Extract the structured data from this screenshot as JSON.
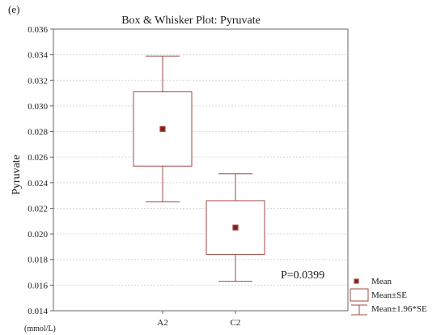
{
  "panel_label": "(e)",
  "chart_data": {
    "type": "box",
    "title": "Box & Whisker Plot: Pyruvate",
    "xlabel": "",
    "ylabel": "Pyruvate",
    "unit_label": "(mmol/L)",
    "categories": [
      "A2",
      "C2"
    ],
    "ylim": [
      0.014,
      0.036
    ],
    "yticks": [
      "0.014",
      "0.016",
      "0.018",
      "0.020",
      "0.022",
      "0.024",
      "0.026",
      "0.028",
      "0.030",
      "0.032",
      "0.034",
      "0.036"
    ],
    "grid": true,
    "boxes": [
      {
        "category": "A2",
        "mean": 0.0282,
        "se_low": 0.0253,
        "se_high": 0.0311,
        "ci_low": 0.0225,
        "ci_high": 0.0339
      },
      {
        "category": "C2",
        "mean": 0.0205,
        "se_low": 0.0184,
        "se_high": 0.0226,
        "ci_low": 0.0163,
        "ci_high": 0.0247
      }
    ],
    "annotation": "P=0.0399",
    "legend": {
      "placement": "bottom-right",
      "items": [
        "Mean",
        "Mean±SE",
        "Mean±1.96*SE"
      ]
    },
    "colors": {
      "series": "#9e4a44",
      "mean_fill": "#8b1a1a",
      "axis": "#666666",
      "grid": "#d9d9d9"
    }
  }
}
